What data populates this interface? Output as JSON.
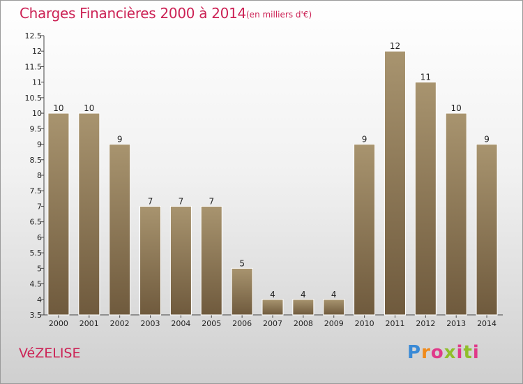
{
  "chart_data": {
    "type": "bar",
    "title": "Charges Financières 2000 à 2014",
    "subtitle": "(en milliers d'€)",
    "categories": [
      "2000",
      "2001",
      "2002",
      "2003",
      "2004",
      "2005",
      "2006",
      "2007",
      "2008",
      "2009",
      "2010",
      "2011",
      "2012",
      "2013",
      "2014"
    ],
    "values": [
      10,
      10,
      9,
      7,
      7,
      7,
      5,
      4,
      4,
      4,
      9,
      12,
      11,
      10,
      9
    ],
    "ylim": [
      3.5,
      12.5
    ],
    "yticks": [
      "3.5",
      "4",
      "4.5",
      "5",
      "5.5",
      "6",
      "6.5",
      "7",
      "7.5",
      "8",
      "8.5",
      "9",
      "9.5",
      "10",
      "10.5",
      "11",
      "11.5",
      "12",
      "12.5"
    ],
    "grid": false,
    "bar_color": "#8b7355"
  },
  "commune": "VéZELISE",
  "logo": {
    "letters": [
      "P",
      "r",
      "o",
      "x",
      "i",
      "t",
      "i"
    ]
  }
}
